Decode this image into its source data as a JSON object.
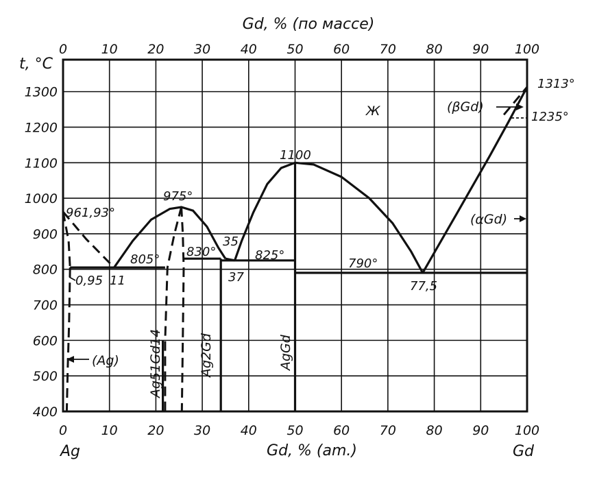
{
  "chart_data": {
    "type": "phase-diagram",
    "title_top": "Gd, % (по массе)",
    "xlabel_bottom": "Gd, % (am.)",
    "ylabel": "t, °C",
    "x_bottom_ticks": [
      "0",
      "10",
      "20",
      "30",
      "40",
      "50",
      "60",
      "70",
      "80",
      "90",
      "100"
    ],
    "x_top_ticks": [
      "0",
      "10",
      "20",
      "30",
      "40",
      "50",
      "60",
      "70",
      "80",
      "90",
      "100"
    ],
    "y_ticks": [
      "400",
      "500",
      "600",
      "700",
      "800",
      "900",
      "1000",
      "1100",
      "1200",
      "1300"
    ],
    "element_left": "Ag",
    "element_right": "Gd",
    "xlim": [
      0,
      100
    ],
    "ylim": [
      400,
      1390
    ],
    "phases": {
      "liquid": "Ж",
      "ag_solid": "(Ag)",
      "beta_gd": "(βGd)",
      "alpha_gd": "(αGd)",
      "ag51gd14": "Ag51Gd14",
      "ag2gd": "Ag2Gd",
      "aggd": "AgGd"
    },
    "annotations": {
      "ag_melt": "961,93°",
      "ag51gd14_melt": "975°",
      "aggd_melt": "1100",
      "gd_melt": "1313°",
      "gd_transition": "1235°",
      "eutectic_1_temp": "805°",
      "eutectic_1_comp": "11",
      "ag_solubility": "0,95",
      "peritectic_temp": "830°",
      "peritectic_comp": "35",
      "eutectic_2_temp": "825°",
      "eutectic_2_comp": "37",
      "eutectic_3_temp": "790°",
      "eutectic_3_comp": "77,5"
    },
    "key_points": [
      {
        "x": 0,
        "t": 961.93
      },
      {
        "x": 11,
        "t": 805
      },
      {
        "x": 25.5,
        "t": 975
      },
      {
        "x": 35,
        "t": 830
      },
      {
        "x": 37,
        "t": 825
      },
      {
        "x": 50,
        "t": 1100
      },
      {
        "x": 77.5,
        "t": 790
      },
      {
        "x": 100,
        "t": 1313
      },
      {
        "x": 100,
        "t": 1235
      }
    ],
    "isotherms": [
      {
        "t": 805,
        "x": [
          1.5,
          22
        ]
      },
      {
        "t": 830,
        "x": [
          26,
          34
        ]
      },
      {
        "t": 825,
        "x": [
          34,
          50
        ]
      },
      {
        "t": 790,
        "x": [
          50,
          100
        ]
      }
    ],
    "compounds": [
      {
        "name": "Ag51Gd14",
        "x": 21.5
      },
      {
        "name": "Ag2Gd",
        "x": 33.3
      },
      {
        "name": "AgGd",
        "x": 50
      }
    ]
  }
}
